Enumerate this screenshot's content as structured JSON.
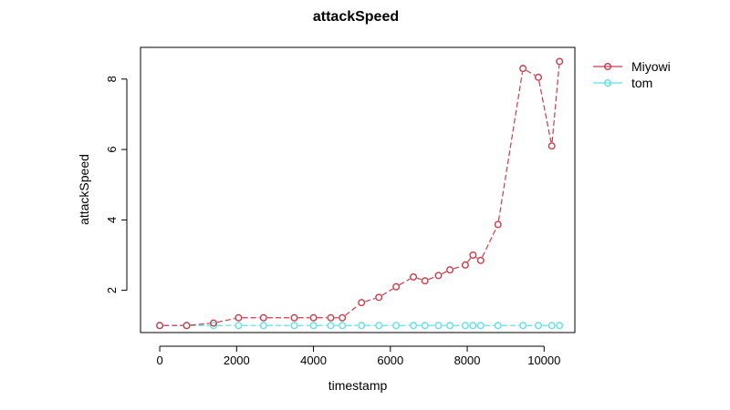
{
  "chart_data": {
    "type": "line",
    "title": "attackSpeed",
    "xlabel": "timestamp",
    "ylabel": "attackSpeed",
    "xlim": [
      -500,
      10800
    ],
    "ylim": [
      0.8,
      8.9
    ],
    "x_ticks": [
      0,
      2000,
      4000,
      6000,
      8000,
      10000
    ],
    "x_tick_labels": [
      "0",
      "2000",
      "4000",
      "6000",
      "8000",
      "10000"
    ],
    "y_ticks": [
      2,
      4,
      6,
      8
    ],
    "y_tick_labels": [
      "2",
      "4",
      "6",
      "8"
    ],
    "legend": {
      "position": "top-right-outside"
    },
    "series": [
      {
        "name": "Miyowi",
        "color": "#cd3b4a",
        "style": "dashed-line-with-open-circles",
        "x": [
          0,
          700,
          1400,
          2050,
          2700,
          3500,
          4000,
          4450,
          4750,
          5250,
          5700,
          6150,
          6600,
          6900,
          7250,
          7550,
          7950,
          8150,
          8350,
          8800,
          9450,
          9850,
          10200,
          10400
        ],
        "y": [
          1.0,
          1.0,
          1.07,
          1.22,
          1.22,
          1.22,
          1.22,
          1.22,
          1.22,
          1.65,
          1.8,
          2.1,
          2.38,
          2.27,
          2.42,
          2.58,
          2.72,
          3.0,
          2.85,
          3.87,
          8.3,
          8.05,
          6.1,
          8.5
        ]
      },
      {
        "name": "tom",
        "color": "#5fe0e8",
        "style": "dashed-line-with-open-circles",
        "x": [
          0,
          700,
          1400,
          2050,
          2700,
          3500,
          4000,
          4450,
          4750,
          5250,
          5700,
          6150,
          6600,
          6900,
          7250,
          7550,
          7950,
          8150,
          8350,
          8800,
          9450,
          9850,
          10200,
          10400
        ],
        "y": [
          1,
          1,
          1,
          1,
          1,
          1,
          1,
          1,
          1,
          1,
          1,
          1,
          1,
          1,
          1,
          1,
          1,
          1,
          1,
          1,
          1,
          1,
          1,
          1
        ]
      }
    ]
  }
}
